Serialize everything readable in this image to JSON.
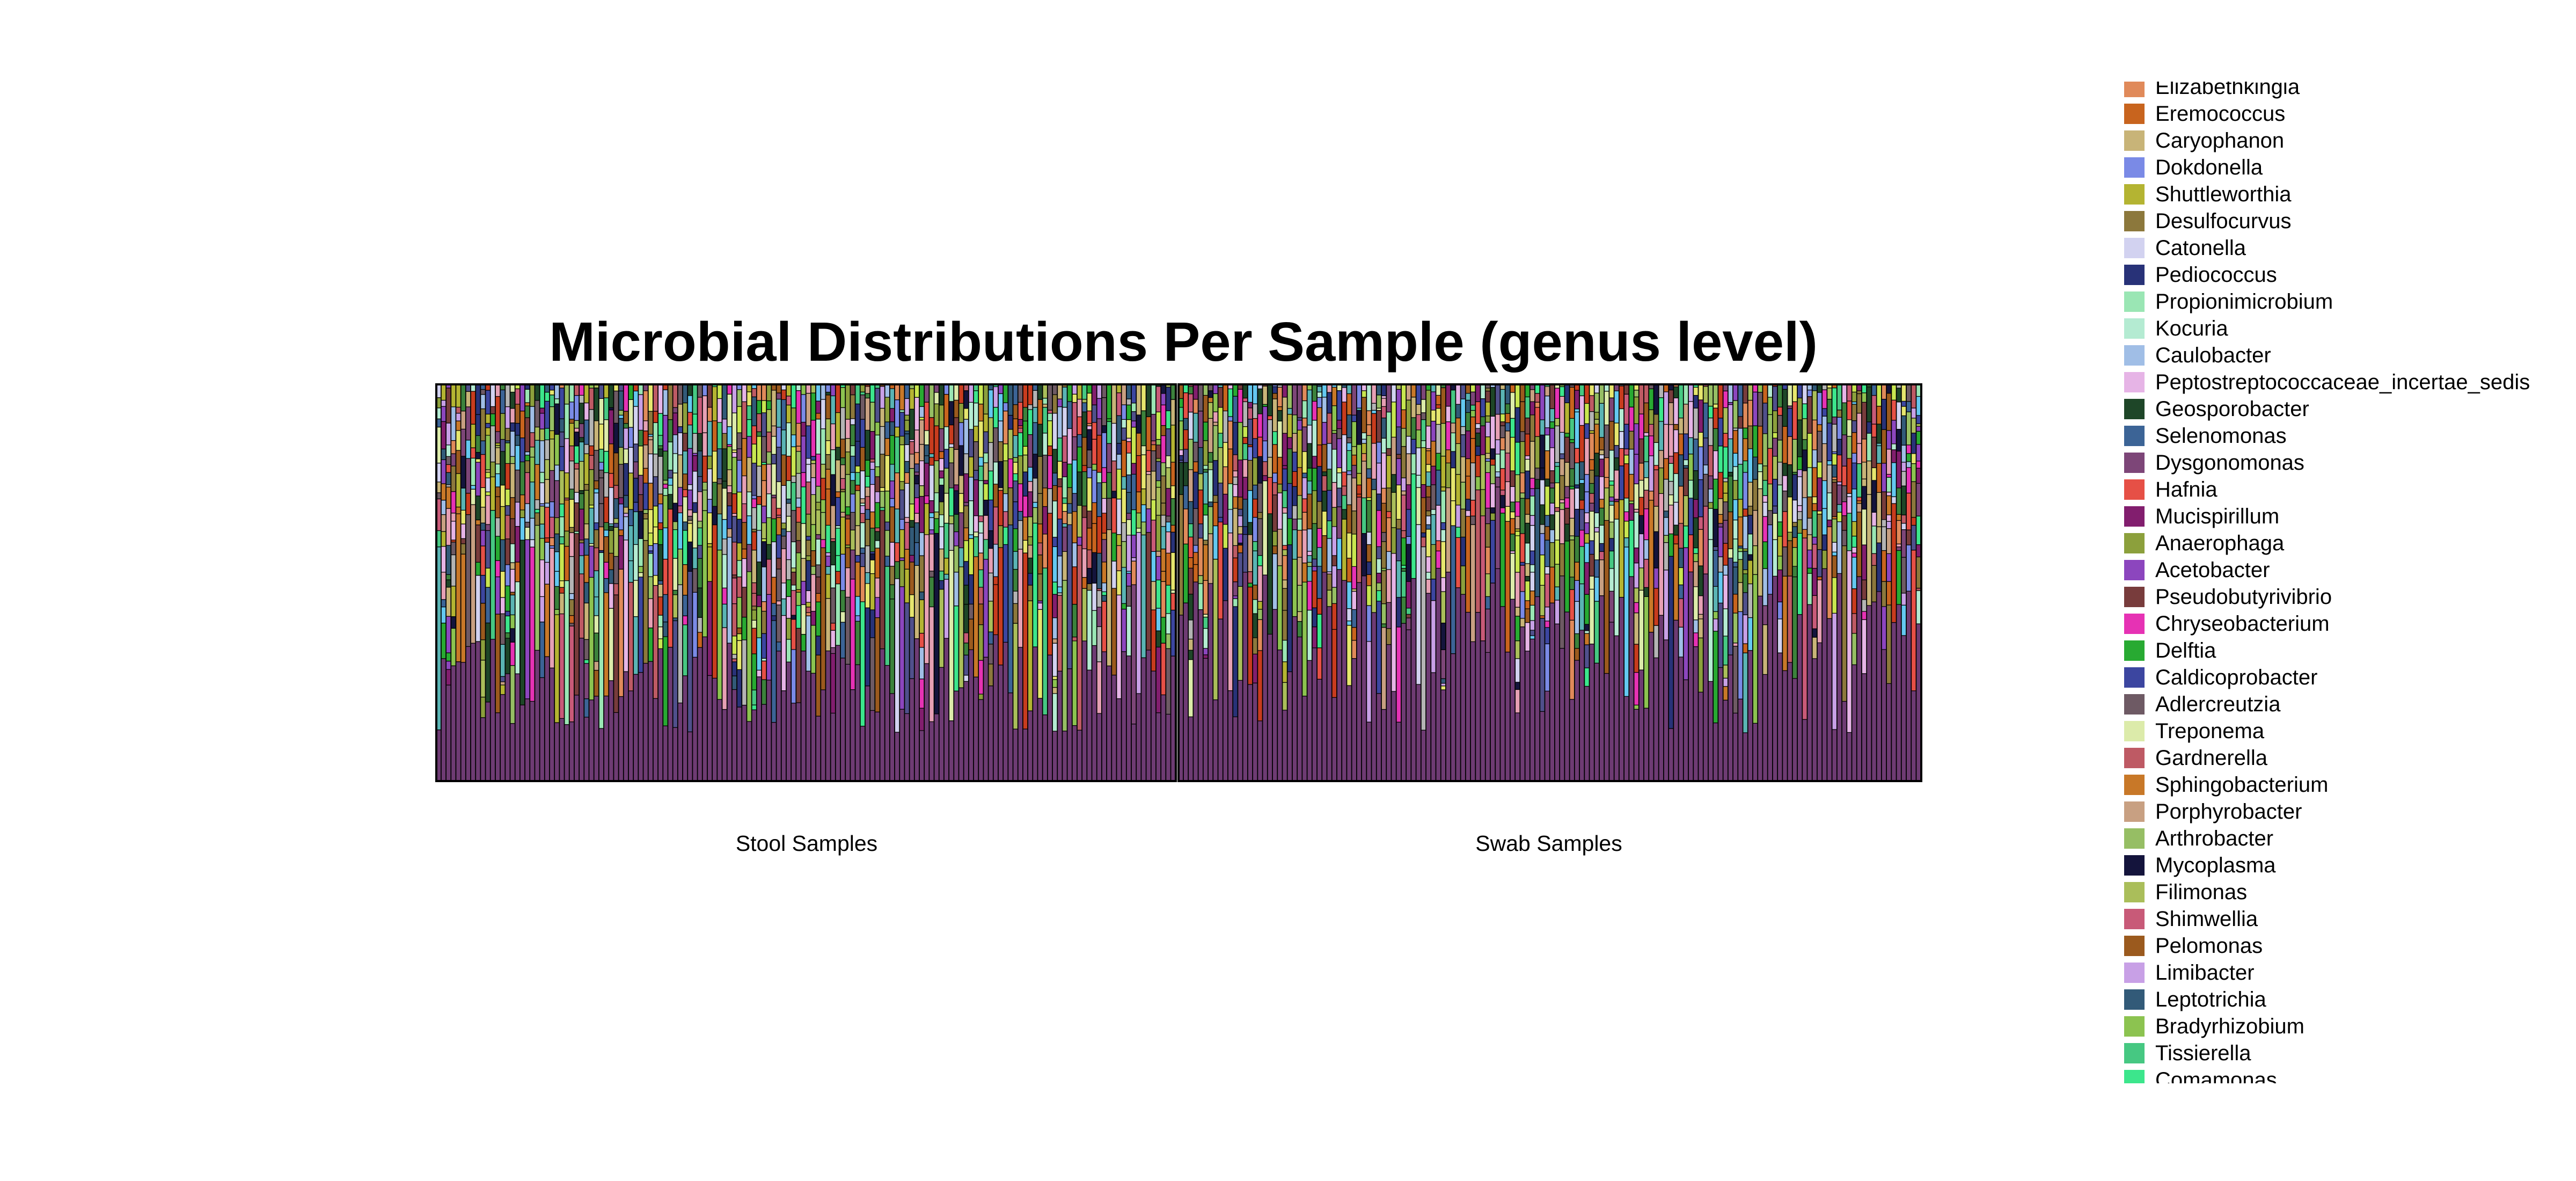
{
  "chart_data": {
    "type": "bar",
    "stacked": true,
    "normalized": true,
    "title": "Microbial Distributions Per Sample (genus level)",
    "xlabel": "",
    "ylabel": "",
    "ylim": [
      0,
      1
    ],
    "grid": false,
    "facets": [
      {
        "name": "Stool Samples",
        "n_samples": 150
      },
      {
        "name": "Swab Samples",
        "n_samples": 150
      }
    ],
    "legend_position": "right",
    "dominant_genus_color": "#6E3B73",
    "legend": [
      {
        "name": "Elizabethkingia",
        "color": "#E08A5A"
      },
      {
        "name": "Eremococcus",
        "color": "#C8641E"
      },
      {
        "name": "Caryophanon",
        "color": "#C8B478"
      },
      {
        "name": "Dokdonella",
        "color": "#7A8AE6"
      },
      {
        "name": "Shuttleworthia",
        "color": "#B4B432"
      },
      {
        "name": "Desulfocurvus",
        "color": "#8C783C"
      },
      {
        "name": "Catonella",
        "color": "#D2D2F0"
      },
      {
        "name": "Pediococcus",
        "color": "#283278"
      },
      {
        "name": "Propionimicrobium",
        "color": "#9AE6B4"
      },
      {
        "name": "Kocuria",
        "color": "#B4EBD2"
      },
      {
        "name": "Caulobacter",
        "color": "#A0BEE6"
      },
      {
        "name": "Peptostreptococcaceae_incertae_sedis",
        "color": "#E6B4E6"
      },
      {
        "name": "Geosporobacter",
        "color": "#1E4628"
      },
      {
        "name": "Selenomonas",
        "color": "#3C6496"
      },
      {
        "name": "Dysgonomonas",
        "color": "#7D4678"
      },
      {
        "name": "Hafnia",
        "color": "#E65046"
      },
      {
        "name": "Mucispirillum",
        "color": "#821E6E"
      },
      {
        "name": "Anaerophaga",
        "color": "#8CA03C"
      },
      {
        "name": "Acetobacter",
        "color": "#8C46BE"
      },
      {
        "name": "Pseudobutyrivibrio",
        "color": "#783C3C"
      },
      {
        "name": "Chryseobacterium",
        "color": "#E632B4"
      },
      {
        "name": "Delftia",
        "color": "#28AA32"
      },
      {
        "name": "Caldicoprobacter",
        "color": "#3C46A0"
      },
      {
        "name": "Adlercreutzia",
        "color": "#6E5A64"
      },
      {
        "name": "Treponema",
        "color": "#DCEBAA"
      },
      {
        "name": "Gardnerella",
        "color": "#BE5A64"
      },
      {
        "name": "Sphingobacterium",
        "color": "#C87828"
      },
      {
        "name": "Porphyrobacter",
        "color": "#C8A082"
      },
      {
        "name": "Arthrobacter",
        "color": "#96BE64"
      },
      {
        "name": "Mycoplasma",
        "color": "#14143C"
      },
      {
        "name": "Filimonas",
        "color": "#AABE5A"
      },
      {
        "name": "Shimwellia",
        "color": "#C85A78"
      },
      {
        "name": "Pelomonas",
        "color": "#9B5A1E"
      },
      {
        "name": "Limibacter",
        "color": "#C8A0E6"
      },
      {
        "name": "Leptotrichia",
        "color": "#325A78"
      },
      {
        "name": "Bradyrhizobium",
        "color": "#8CC350"
      },
      {
        "name": "Tissierella",
        "color": "#46C882"
      },
      {
        "name": "Comamonas",
        "color": "#3CE68C"
      }
    ]
  }
}
